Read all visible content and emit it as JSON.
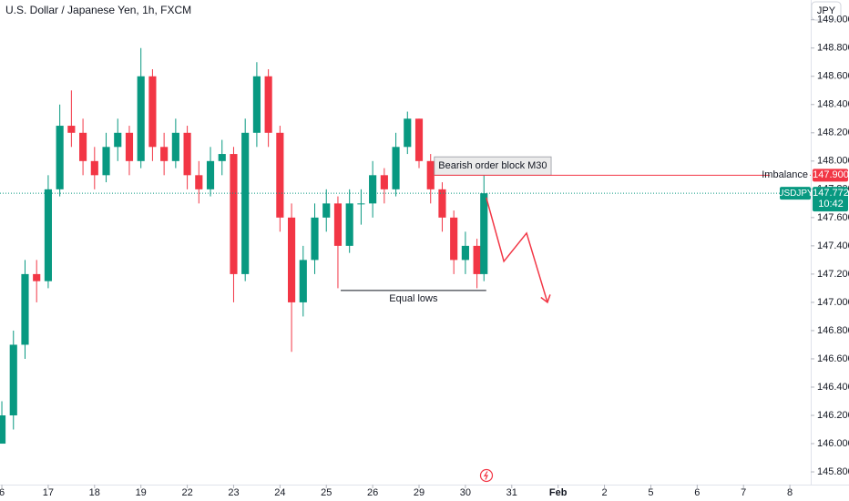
{
  "chart_data": {
    "type": "candlestick",
    "title": "U.S. Dollar / Japanese Yen, 1h, FXCM",
    "currency_button": "JPY",
    "up_color": "#089981",
    "down_color": "#f23645",
    "xlim": [
      -0.04,
      17.45
    ],
    "ylim": [
      145.71,
      149.14
    ],
    "xticks": [
      {
        "value": 0,
        "label": "6"
      },
      {
        "value": 1,
        "label": "17"
      },
      {
        "value": 2,
        "label": "18"
      },
      {
        "value": 3,
        "label": "19"
      },
      {
        "value": 4,
        "label": "22"
      },
      {
        "value": 5,
        "label": "23"
      },
      {
        "value": 6,
        "label": "24"
      },
      {
        "value": 7,
        "label": "25"
      },
      {
        "value": 8,
        "label": "26"
      },
      {
        "value": 9,
        "label": "29"
      },
      {
        "value": 10,
        "label": "30"
      },
      {
        "value": 11,
        "label": "31"
      },
      {
        "value": 12,
        "label": "Feb"
      },
      {
        "value": 13,
        "label": "2"
      },
      {
        "value": 14,
        "label": "5"
      },
      {
        "value": 15,
        "label": "6"
      },
      {
        "value": 16,
        "label": "7"
      },
      {
        "value": 17,
        "label": "8"
      }
    ],
    "yticks": [
      {
        "value": 145.8,
        "label": "145.800"
      },
      {
        "value": 146.0,
        "label": "146.000"
      },
      {
        "value": 146.2,
        "label": "146.200"
      },
      {
        "value": 146.4,
        "label": "146.400"
      },
      {
        "value": 146.6,
        "label": "146.600"
      },
      {
        "value": 146.8,
        "label": "146.800"
      },
      {
        "value": 147.0,
        "label": "147.000"
      },
      {
        "value": 147.2,
        "label": "147.200"
      },
      {
        "value": 147.4,
        "label": "147.400"
      },
      {
        "value": 147.6,
        "label": "147.600"
      },
      {
        "value": 147.8,
        "label": "147.800"
      },
      {
        "value": 148.0,
        "label": "148.000"
      },
      {
        "value": 148.2,
        "label": "148.200"
      },
      {
        "value": 148.4,
        "label": "148.400"
      },
      {
        "value": 148.6,
        "label": "148.600"
      },
      {
        "value": 148.8,
        "label": "148.800"
      },
      {
        "value": 149.0,
        "label": "149.000"
      }
    ],
    "x": [
      0,
      0.25,
      0.5,
      0.75,
      1,
      1.25,
      1.5,
      1.75,
      2,
      2.25,
      2.5,
      2.75,
      3,
      3.25,
      3.5,
      3.75,
      4,
      4.25,
      4.5,
      4.75,
      5,
      5.25,
      5.5,
      5.75,
      6,
      6.25,
      6.5,
      6.75,
      7,
      7.25,
      7.5,
      7.75,
      8,
      8.25,
      8.5,
      8.75,
      9,
      9.25,
      9.5,
      9.75,
      10,
      10.25,
      10.4
    ],
    "open": [
      146.0,
      146.2,
      146.7,
      147.2,
      147.15,
      147.8,
      148.25,
      148.2,
      148.0,
      147.9,
      148.1,
      148.2,
      148.0,
      148.6,
      148.1,
      148.0,
      148.2,
      147.9,
      147.8,
      148.0,
      148.05,
      147.2,
      148.2,
      148.6,
      148.2,
      147.6,
      147.0,
      147.3,
      147.6,
      147.7,
      147.4,
      147.7,
      147.7,
      147.9,
      147.8,
      148.1,
      148.3,
      148.0,
      147.8,
      147.6,
      147.3,
      147.4,
      147.2
    ],
    "high": [
      146.3,
      146.8,
      147.3,
      147.3,
      147.9,
      148.4,
      148.5,
      148.3,
      148.1,
      148.2,
      148.3,
      148.25,
      148.8,
      148.65,
      148.2,
      148.3,
      148.25,
      148.0,
      148.1,
      148.15,
      148.1,
      148.3,
      148.7,
      148.65,
      148.25,
      147.7,
      147.4,
      147.7,
      147.8,
      147.75,
      147.8,
      147.8,
      148.0,
      147.95,
      148.2,
      148.35,
      148.3,
      148.05,
      147.85,
      147.65,
      147.5,
      147.45,
      147.9
    ],
    "low": [
      146.0,
      146.1,
      146.6,
      147.0,
      147.1,
      147.75,
      148.1,
      147.9,
      147.8,
      147.85,
      148.0,
      147.9,
      147.95,
      148.0,
      147.9,
      147.95,
      147.8,
      147.7,
      147.75,
      147.9,
      147.0,
      147.15,
      148.1,
      148.1,
      147.5,
      146.65,
      146.9,
      147.2,
      147.5,
      147.1,
      147.35,
      147.55,
      147.6,
      147.7,
      147.75,
      148.05,
      147.95,
      147.7,
      147.5,
      147.2,
      147.2,
      147.1,
      147.15
    ],
    "close": [
      146.2,
      146.7,
      147.2,
      147.15,
      147.8,
      148.25,
      148.2,
      148.0,
      147.9,
      148.1,
      148.2,
      148.0,
      148.6,
      148.1,
      148.0,
      148.2,
      147.9,
      147.8,
      148.0,
      148.05,
      147.2,
      148.2,
      148.6,
      148.2,
      147.6,
      147.0,
      147.3,
      147.6,
      147.7,
      147.4,
      147.7,
      147.7,
      147.9,
      147.8,
      148.1,
      148.3,
      148.0,
      147.8,
      147.6,
      147.3,
      147.4,
      147.2,
      147.772
    ],
    "order_block": {
      "label": "Bearish order block M30",
      "x": [
        9.33,
        11.85
      ],
      "y": [
        147.9,
        148.03
      ]
    },
    "imbalance": {
      "label": "Imbalance",
      "value": 147.9,
      "value_label": "147.900",
      "x_start": 9.33,
      "color": "#f23645"
    },
    "equal_lows": {
      "label": "Equal lows",
      "value": 147.084,
      "x": [
        7.31,
        10.45
      ]
    },
    "projection": {
      "x": [
        10.45,
        10.83,
        11.32,
        11.77
      ],
      "y": [
        147.742,
        147.29,
        147.49,
        147.0
      ],
      "color": "#f23645"
    },
    "current_price": {
      "symbol": "USDJPY",
      "value": 147.772,
      "value_label": "147.772",
      "countdown": "10:42",
      "color": "#089981"
    }
  }
}
